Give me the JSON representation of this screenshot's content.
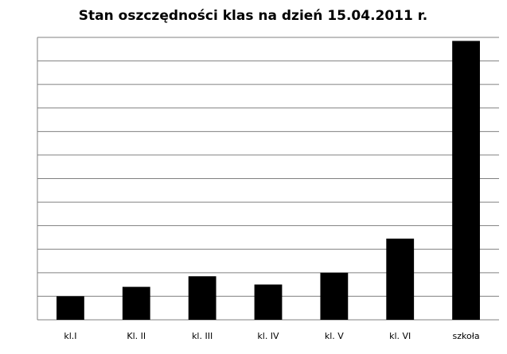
{
  "chart_data": {
    "type": "bar",
    "title": "Stan oszczędności  klas na dzień 15.04.2011 r.",
    "categories": [
      "kl.I",
      "Kl. II",
      "kl. III",
      "kl. IV",
      "kl. V",
      "kl. VI",
      "szkoła"
    ],
    "values": [
      1.0,
      1.4,
      1.85,
      1.5,
      2.0,
      3.45,
      11.85
    ],
    "color": "#000000",
    "ylim": [
      0,
      12
    ],
    "yticks": [
      0,
      1,
      2,
      3,
      4,
      5,
      6,
      7,
      8,
      9,
      10,
      11,
      12
    ],
    "grid": true
  }
}
